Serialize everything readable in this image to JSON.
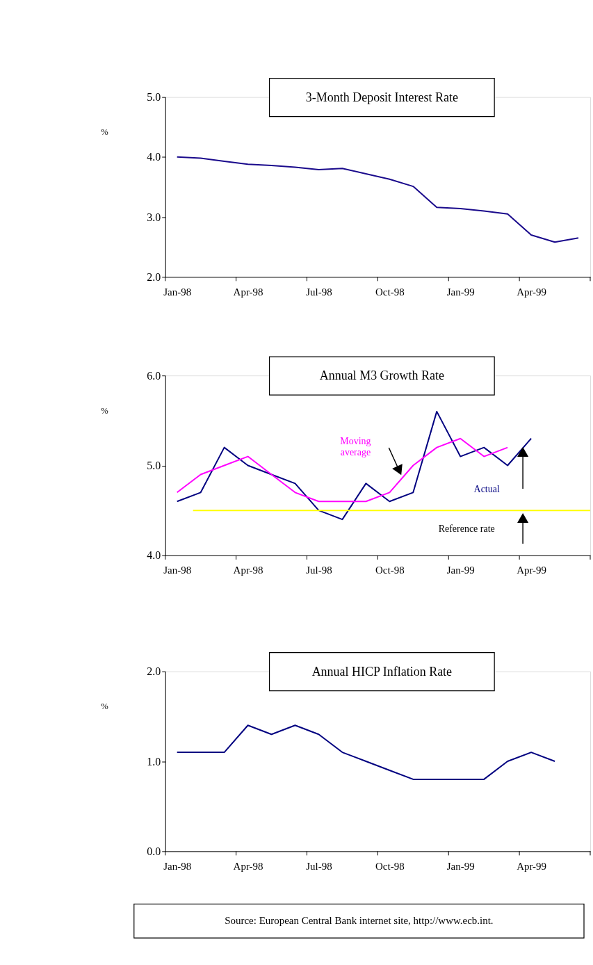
{
  "chart_data": [
    {
      "type": "line",
      "title": "3-Month Deposit Interest Rate",
      "ylabel": "%",
      "categories": [
        "Jan-98",
        null,
        null,
        "Apr-98",
        null,
        null,
        "Jul-98",
        null,
        null,
        "Oct-98",
        null,
        null,
        "Jan-99",
        null,
        null,
        "Apr-99",
        null,
        null
      ],
      "series": [
        {
          "color": "#1a0a8c",
          "values": [
            4.0,
            3.98,
            3.93,
            3.88,
            3.86,
            3.83,
            3.79,
            3.81,
            3.72,
            3.63,
            3.51,
            3.16,
            3.14,
            3.1,
            3.05,
            2.7,
            2.58,
            2.65
          ]
        }
      ],
      "ylim": [
        2,
        5
      ],
      "yticks": [
        {
          "value": 2,
          "label": "2.0"
        },
        {
          "value": 3,
          "label": "3.0"
        },
        {
          "value": 4,
          "label": "4.0"
        },
        {
          "value": 5,
          "label": "5.0"
        }
      ],
      "grid": false
    },
    {
      "type": "line",
      "title": "Annual M3 Growth Rate",
      "ylabel": "%",
      "categories": [
        "Jan-98",
        null,
        null,
        "Apr-98",
        null,
        null,
        "Jul-98",
        null,
        null,
        "Oct-98",
        null,
        null,
        "Jan-99",
        null,
        null,
        "Apr-99",
        null,
        null
      ],
      "series": [
        {
          "name": "Actual",
          "color": "#000080",
          "values": [
            4.6,
            4.7,
            5.2,
            5.0,
            4.9,
            4.8,
            4.5,
            4.4,
            4.8,
            4.6,
            4.7,
            5.6,
            5.1,
            5.2,
            5.0,
            5.3,
            null,
            null
          ]
        },
        {
          "name": "Moving average",
          "color": "#ff00ff",
          "values": [
            4.7,
            4.9,
            5.0,
            5.1,
            4.9,
            4.7,
            4.6,
            4.6,
            4.6,
            4.7,
            5.0,
            5.2,
            5.3,
            5.1,
            5.2,
            null,
            null,
            null
          ]
        }
      ],
      "ref_lines": [
        {
          "axis": "y",
          "value": 4.5,
          "label": "Reference rate",
          "color": "#ffff00"
        }
      ],
      "ylim": [
        4,
        6
      ],
      "yticks": [
        {
          "value": 4,
          "label": "4.0"
        },
        {
          "value": 5,
          "label": "5.0"
        },
        {
          "value": 6,
          "label": "6.0"
        }
      ],
      "grid": false
    },
    {
      "type": "line",
      "title": "Annual HICP Inflation Rate",
      "ylabel": "%",
      "categories": [
        "Jan-98",
        null,
        null,
        "Apr-98",
        null,
        null,
        "Jul-98",
        null,
        null,
        "Oct-98",
        null,
        null,
        "Jan-99",
        null,
        null,
        "Apr-99",
        null,
        null
      ],
      "series": [
        {
          "color": "#000080",
          "values": [
            1.1,
            1.1,
            1.1,
            1.4,
            1.3,
            1.4,
            1.3,
            1.1,
            1.0,
            0.9,
            0.8,
            0.8,
            0.8,
            0.8,
            1.0,
            1.1,
            1.0,
            null
          ]
        }
      ],
      "ylim": [
        0,
        2
      ],
      "yticks": [
        {
          "value": 0,
          "label": "0.0"
        },
        {
          "value": 1,
          "label": "1.0"
        },
        {
          "value": 2,
          "label": "2.0"
        }
      ],
      "grid": false,
      "annotations": [
        "Source:  European Central Bank internet site, http://www.ecb.int."
      ]
    }
  ]
}
